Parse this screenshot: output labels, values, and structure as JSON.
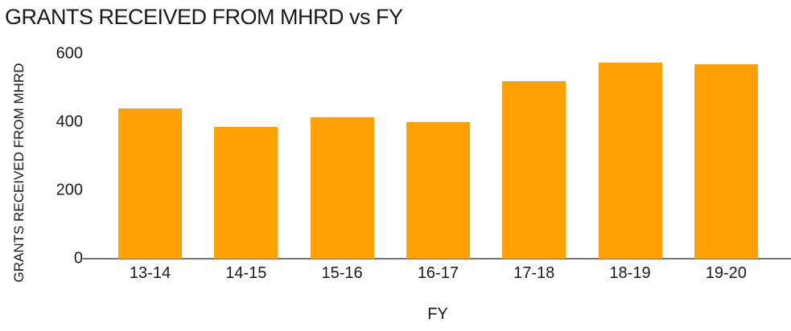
{
  "chart_data": {
    "type": "bar",
    "title": "GRANTS RECEIVED FROM MHRD vs FY",
    "xlabel": "FY",
    "ylabel": "GRANTS RECEIVED FROM MHRD",
    "categories": [
      "13-14",
      "14-15",
      "15-16",
      "16-17",
      "17-18",
      "18-19",
      "19-20"
    ],
    "values": [
      440,
      385,
      415,
      400,
      520,
      575,
      570
    ],
    "yticks": [
      0,
      200,
      400,
      600
    ],
    "ylim": [
      0,
      640
    ],
    "grid": false,
    "legend": null,
    "bar_color": "#FFA005",
    "axis_line_color": "#757575",
    "text_color": "#1a1a1a"
  }
}
